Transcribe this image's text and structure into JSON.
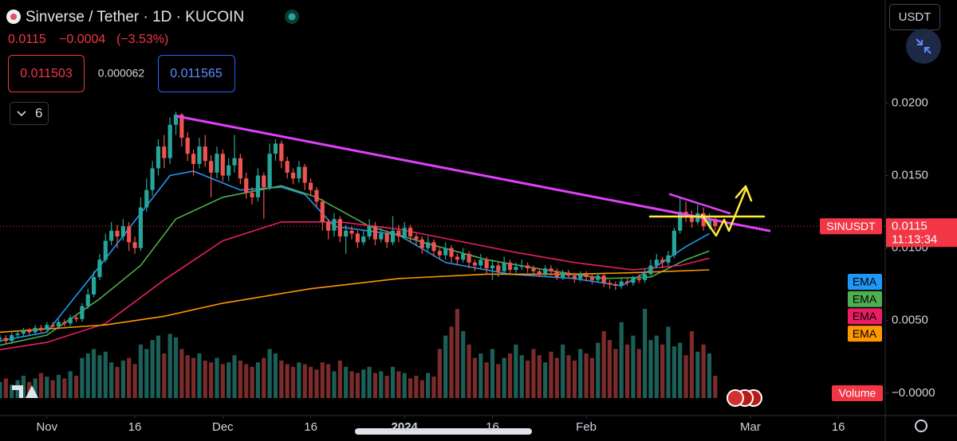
{
  "header": {
    "title": "Sinverse / Tether · 1D · KUCOIN",
    "change": "−0.0004",
    "change_pct": "(−3.53%)",
    "bid": "0.011503",
    "spread": "0.000062",
    "ask": "0.011565",
    "indicators_count": "6",
    "currency": "USDT"
  },
  "chart_data": {
    "type": "candlestick",
    "symbol": "SINUSDT",
    "last_price": 0.0115,
    "countdown": "11:13:34",
    "volume_label": "Volume",
    "up_color": "#26a69a",
    "down_color": "#ef5350",
    "volume_up_color": "#1c5f58",
    "volume_down_color": "#7c2b2b",
    "grid": false,
    "xlim": [
      -8,
      143
    ],
    "ylim": [
      -0.0033,
      0.0271
    ],
    "vlim": [
      0,
      100
    ],
    "xticks": [
      {
        "value": 0,
        "label": "Nov"
      },
      {
        "value": 15,
        "label": "16"
      },
      {
        "value": 30,
        "label": "Dec"
      },
      {
        "value": 45,
        "label": "16"
      },
      {
        "value": 61,
        "label": "2024"
      },
      {
        "value": 76,
        "label": "16"
      },
      {
        "value": 92,
        "label": "Feb"
      },
      {
        "value": 120,
        "label": "Mar"
      },
      {
        "value": 135,
        "label": "16"
      }
    ],
    "yticks": [
      {
        "value": 0.02,
        "label": "0.0200"
      },
      {
        "value": 0.015,
        "label": "0.0150"
      },
      {
        "value": 0.01,
        "label": "0.0100"
      },
      {
        "value": 0.005,
        "label": "0.0050"
      },
      {
        "value": 0,
        "label": "−0.0000"
      }
    ],
    "x": [
      -8,
      -7,
      -6,
      -5,
      -4,
      -3,
      -2,
      -1,
      0,
      1,
      2,
      3,
      4,
      5,
      6,
      7,
      8,
      9,
      10,
      11,
      12,
      13,
      14,
      15,
      16,
      17,
      18,
      19,
      20,
      21,
      22,
      23,
      24,
      25,
      26,
      27,
      28,
      29,
      30,
      31,
      32,
      33,
      34,
      35,
      36,
      37,
      38,
      39,
      40,
      41,
      42,
      43,
      44,
      45,
      46,
      47,
      48,
      49,
      50,
      51,
      52,
      53,
      54,
      55,
      56,
      57,
      58,
      59,
      60,
      61,
      62,
      63,
      64,
      65,
      66,
      67,
      68,
      69,
      70,
      71,
      72,
      73,
      74,
      75,
      76,
      77,
      78,
      79,
      80,
      81,
      82,
      83,
      84,
      85,
      86,
      87,
      88,
      89,
      90,
      91,
      92,
      93,
      94,
      95,
      96,
      97,
      98,
      99,
      100,
      101,
      102,
      103,
      104,
      105,
      106,
      107,
      108,
      109,
      110,
      111,
      112,
      113,
      114
    ],
    "candles": [
      [
        0.0037,
        0.004,
        0.0035,
        0.0038
      ],
      [
        0.0038,
        0.004,
        0.0034,
        0.0036
      ],
      [
        0.0036,
        0.0042,
        0.0034,
        0.004
      ],
      [
        0.004,
        0.0043,
        0.0038,
        0.0041
      ],
      [
        0.0041,
        0.0045,
        0.0039,
        0.0043
      ],
      [
        0.0043,
        0.0045,
        0.004,
        0.0042
      ],
      [
        0.0042,
        0.0047,
        0.004,
        0.0045
      ],
      [
        0.0045,
        0.0047,
        0.0042,
        0.0044
      ],
      [
        0.0044,
        0.0049,
        0.0042,
        0.0047
      ],
      [
        0.0047,
        0.0049,
        0.0044,
        0.0046
      ],
      [
        0.0046,
        0.0051,
        0.0044,
        0.0049
      ],
      [
        0.0049,
        0.0051,
        0.0046,
        0.0048
      ],
      [
        0.0048,
        0.0054,
        0.0046,
        0.0052
      ],
      [
        0.0052,
        0.0054,
        0.0049,
        0.0051
      ],
      [
        0.0051,
        0.0062,
        0.0049,
        0.006
      ],
      [
        0.006,
        0.0072,
        0.0058,
        0.0068
      ],
      [
        0.0068,
        0.0084,
        0.0066,
        0.008
      ],
      [
        0.008,
        0.0096,
        0.0078,
        0.0092
      ],
      [
        0.0092,
        0.011,
        0.009,
        0.0105
      ],
      [
        0.0105,
        0.0118,
        0.0102,
        0.0112
      ],
      [
        0.0112,
        0.0116,
        0.01,
        0.0108
      ],
      [
        0.0108,
        0.012,
        0.0105,
        0.0115
      ],
      [
        0.0115,
        0.0118,
        0.0098,
        0.0104
      ],
      [
        0.0104,
        0.0108,
        0.0096,
        0.01
      ],
      [
        0.01,
        0.0135,
        0.0098,
        0.0128
      ],
      [
        0.0128,
        0.0148,
        0.0125,
        0.014
      ],
      [
        0.014,
        0.016,
        0.0136,
        0.0155
      ],
      [
        0.0155,
        0.0175,
        0.015,
        0.017
      ],
      [
        0.017,
        0.0178,
        0.0155,
        0.0162
      ],
      [
        0.0162,
        0.019,
        0.0158,
        0.0185
      ],
      [
        0.0185,
        0.0194,
        0.0178,
        0.0192
      ],
      [
        0.0192,
        0.0193,
        0.017,
        0.0176
      ],
      [
        0.0176,
        0.018,
        0.016,
        0.0165
      ],
      [
        0.0165,
        0.0168,
        0.015,
        0.0158
      ],
      [
        0.0158,
        0.0176,
        0.0155,
        0.017
      ],
      [
        0.017,
        0.0178,
        0.0156,
        0.016
      ],
      [
        0.016,
        0.0164,
        0.0135,
        0.0152
      ],
      [
        0.0152,
        0.017,
        0.0148,
        0.0165
      ],
      [
        0.0165,
        0.0168,
        0.0146,
        0.015
      ],
      [
        0.015,
        0.0162,
        0.0146,
        0.0157
      ],
      [
        0.0157,
        0.0178,
        0.0152,
        0.0162
      ],
      [
        0.0162,
        0.0165,
        0.0144,
        0.0148
      ],
      [
        0.0148,
        0.0152,
        0.0134,
        0.0138
      ],
      [
        0.0138,
        0.0142,
        0.013,
        0.0135
      ],
      [
        0.0135,
        0.0155,
        0.0132,
        0.015
      ],
      [
        0.015,
        0.0152,
        0.012,
        0.0142
      ],
      [
        0.0142,
        0.0172,
        0.014,
        0.0165
      ],
      [
        0.0165,
        0.0175,
        0.016,
        0.0172
      ],
      [
        0.0172,
        0.0174,
        0.0155,
        0.016
      ],
      [
        0.016,
        0.0163,
        0.0148,
        0.0152
      ],
      [
        0.0152,
        0.0155,
        0.0144,
        0.0148
      ],
      [
        0.0148,
        0.016,
        0.0145,
        0.0156
      ],
      [
        0.0156,
        0.0158,
        0.014,
        0.0145
      ],
      [
        0.0145,
        0.0148,
        0.0136,
        0.014
      ],
      [
        0.014,
        0.0142,
        0.0128,
        0.0132
      ],
      [
        0.0132,
        0.0134,
        0.0112,
        0.0118
      ],
      [
        0.0118,
        0.012,
        0.0106,
        0.0112
      ],
      [
        0.0112,
        0.0124,
        0.0108,
        0.012
      ],
      [
        0.012,
        0.0122,
        0.0104,
        0.0108
      ],
      [
        0.0108,
        0.0116,
        0.0096,
        0.0112
      ],
      [
        0.0112,
        0.0115,
        0.0106,
        0.011
      ],
      [
        0.011,
        0.0112,
        0.01,
        0.0104
      ],
      [
        0.0104,
        0.0112,
        0.0102,
        0.0108
      ],
      [
        0.0108,
        0.012,
        0.0106,
        0.0115
      ],
      [
        0.0115,
        0.0118,
        0.0102,
        0.0106
      ],
      [
        0.0106,
        0.0114,
        0.0104,
        0.011
      ],
      [
        0.011,
        0.0112,
        0.01,
        0.0104
      ],
      [
        0.0104,
        0.0122,
        0.0102,
        0.0112
      ],
      [
        0.0112,
        0.0116,
        0.0104,
        0.0108
      ],
      [
        0.0108,
        0.0118,
        0.0106,
        0.0114
      ],
      [
        0.0114,
        0.0116,
        0.0104,
        0.0108
      ],
      [
        0.0108,
        0.011,
        0.0102,
        0.0106
      ],
      [
        0.0106,
        0.0108,
        0.0096,
        0.01
      ],
      [
        0.01,
        0.0108,
        0.0098,
        0.0104
      ],
      [
        0.0104,
        0.0106,
        0.0094,
        0.0098
      ],
      [
        0.0098,
        0.01,
        0.0092,
        0.0095
      ],
      [
        0.0095,
        0.0104,
        0.0092,
        0.01
      ],
      [
        0.01,
        0.0102,
        0.009,
        0.0094
      ],
      [
        0.0094,
        0.0096,
        0.0088,
        0.0092
      ],
      [
        0.0092,
        0.01,
        0.009,
        0.0096
      ],
      [
        0.0096,
        0.0098,
        0.0086,
        0.009
      ],
      [
        0.009,
        0.0092,
        0.0084,
        0.0088
      ],
      [
        0.0088,
        0.0096,
        0.0086,
        0.0092
      ],
      [
        0.0092,
        0.0094,
        0.0082,
        0.0086
      ],
      [
        0.0086,
        0.0092,
        0.0078,
        0.0088
      ],
      [
        0.0088,
        0.009,
        0.008,
        0.0084
      ],
      [
        0.0084,
        0.0094,
        0.0082,
        0.009
      ],
      [
        0.009,
        0.0092,
        0.0082,
        0.0085
      ],
      [
        0.0085,
        0.009,
        0.0083,
        0.0087
      ],
      [
        0.0087,
        0.0092,
        0.0085,
        0.0088
      ],
      [
        0.0088,
        0.009,
        0.0083,
        0.0086
      ],
      [
        0.0086,
        0.0088,
        0.0082,
        0.0084
      ],
      [
        0.0084,
        0.0086,
        0.008,
        0.0082
      ],
      [
        0.0082,
        0.0088,
        0.008,
        0.0086
      ],
      [
        0.0086,
        0.0088,
        0.0081,
        0.0084
      ],
      [
        0.0084,
        0.0086,
        0.0078,
        0.008
      ],
      [
        0.008,
        0.0085,
        0.0078,
        0.0083
      ],
      [
        0.0083,
        0.0085,
        0.0079,
        0.0081
      ],
      [
        0.0081,
        0.0083,
        0.0076,
        0.0079
      ],
      [
        0.0079,
        0.0084,
        0.0077,
        0.0082
      ],
      [
        0.0082,
        0.0084,
        0.0077,
        0.008
      ],
      [
        0.008,
        0.0082,
        0.0075,
        0.0078
      ],
      [
        0.0078,
        0.0083,
        0.0076,
        0.0081
      ],
      [
        0.0081,
        0.0082,
        0.0073,
        0.0076
      ],
      [
        0.0076,
        0.0078,
        0.0072,
        0.0075
      ],
      [
        0.0075,
        0.0077,
        0.0071,
        0.0074
      ],
      [
        0.0074,
        0.0079,
        0.0072,
        0.0077
      ],
      [
        0.0077,
        0.0079,
        0.0074,
        0.0076
      ],
      [
        0.0076,
        0.0081,
        0.0074,
        0.0079
      ],
      [
        0.0079,
        0.0082,
        0.0076,
        0.0078
      ],
      [
        0.0078,
        0.0086,
        0.0076,
        0.0082
      ],
      [
        0.0082,
        0.0092,
        0.008,
        0.0088
      ],
      [
        0.0088,
        0.0096,
        0.0086,
        0.0092
      ],
      [
        0.0092,
        0.0094,
        0.0086,
        0.009
      ],
      [
        0.009,
        0.0098,
        0.0088,
        0.0095
      ],
      [
        0.0095,
        0.0114,
        0.0093,
        0.0112
      ],
      [
        0.0112,
        0.0135,
        0.011,
        0.0125
      ],
      [
        0.0125,
        0.0132,
        0.0118,
        0.0122
      ],
      [
        0.0122,
        0.0126,
        0.0114,
        0.0118
      ],
      [
        0.0118,
        0.013,
        0.0116,
        0.0124
      ],
      [
        0.0124,
        0.0128,
        0.0112,
        0.0115
      ],
      [
        0.0115,
        0.0124,
        0.0113,
        0.012
      ],
      [
        0.012,
        0.0122,
        0.0112,
        0.0115
      ]
    ],
    "volume": [
      18,
      22,
      15,
      20,
      25,
      18,
      22,
      28,
      24,
      20,
      26,
      22,
      30,
      25,
      45,
      50,
      55,
      48,
      52,
      40,
      35,
      42,
      45,
      38,
      60,
      55,
      65,
      70,
      50,
      72,
      68,
      55,
      48,
      45,
      50,
      42,
      40,
      45,
      38,
      40,
      48,
      42,
      38,
      35,
      40,
      45,
      55,
      50,
      42,
      38,
      35,
      40,
      38,
      35,
      32,
      40,
      38,
      30,
      42,
      35,
      30,
      28,
      32,
      35,
      28,
      30,
      25,
      35,
      30,
      28,
      22,
      25,
      20,
      28,
      24,
      55,
      70,
      80,
      100,
      75,
      60,
      45,
      50,
      40,
      55,
      38,
      45,
      50,
      60,
      48,
      42,
      55,
      48,
      40,
      52,
      45,
      60,
      48,
      42,
      55,
      50,
      45,
      62,
      75,
      65,
      55,
      85,
      60,
      70,
      55,
      100,
      65,
      70,
      60,
      80,
      58,
      62,
      48,
      75,
      52,
      60,
      50,
      25
    ],
    "series": [
      {
        "name": "EMA",
        "color": "#2196f3",
        "x": [
          -8,
          0,
          9.5,
          21,
          25,
          33,
          40,
          44,
          49,
          60,
          68,
          79,
          90,
          98,
          103,
          109,
          113
        ],
        "values": [
          0.0036,
          0.0042,
          0.009,
          0.015,
          0.0153,
          0.014,
          0.0142,
          0.0137,
          0.0115,
          0.0109,
          0.009,
          0.0082,
          0.0079,
          0.0074,
          0.0085,
          0.0101,
          0.011
        ]
      },
      {
        "name": "EMA",
        "color": "#4caf50",
        "x": [
          -8,
          0,
          9,
          16,
          22,
          30,
          40,
          46,
          55,
          65,
          75,
          85,
          95,
          103,
          109,
          113
        ],
        "values": [
          0.0033,
          0.004,
          0.0065,
          0.0088,
          0.012,
          0.0135,
          0.0143,
          0.0135,
          0.0115,
          0.0103,
          0.0092,
          0.0085,
          0.0079,
          0.008,
          0.0092,
          0.0098
        ]
      },
      {
        "name": "EMA",
        "color": "#e91e63",
        "x": [
          -8,
          0,
          10,
          20,
          30,
          40,
          50,
          60,
          70,
          80,
          90,
          100,
          108,
          113
        ],
        "values": [
          0.003,
          0.0035,
          0.0048,
          0.0078,
          0.0105,
          0.0118,
          0.0118,
          0.0113,
          0.0105,
          0.0097,
          0.009,
          0.0085,
          0.0088,
          0.0093
        ]
      },
      {
        "name": "EMA",
        "color": "#ff9800",
        "x": [
          -8,
          10,
          20,
          30,
          45,
          60,
          75,
          90,
          100,
          113
        ],
        "values": [
          0.0042,
          0.0047,
          0.0053,
          0.0062,
          0.0072,
          0.0079,
          0.0082,
          0.0082,
          0.0083,
          0.0085
        ]
      }
    ]
  }
}
